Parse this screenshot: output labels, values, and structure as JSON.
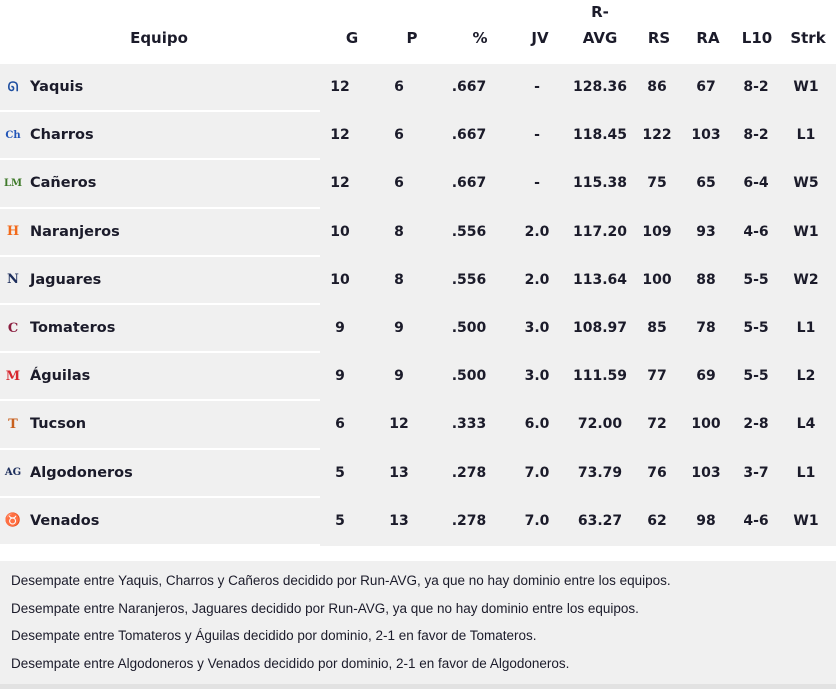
{
  "headers": [
    "Equipo",
    "G",
    "P",
    "%",
    "JV",
    "R-\nAVG",
    "RS",
    "RA",
    "L10",
    "Strk"
  ],
  "header_avg_top": "R-",
  "header_avg_bottom": "AVG",
  "teams": [
    {
      "name": "Yaquis",
      "icon": "yaquis-logo-icon",
      "icon_glyph": "ᘏ",
      "color": "#1f4fa0",
      "g": "12",
      "p": "6",
      "pct": ".667",
      "jv": "-",
      "ravg": "128.36",
      "rs": "86",
      "ra": "67",
      "l10": "8-2",
      "strk": "W1"
    },
    {
      "name": "Charros",
      "icon": "charros-logo-icon",
      "icon_glyph": "Ch",
      "color": "#2356b8",
      "g": "12",
      "p": "6",
      "pct": ".667",
      "jv": "-",
      "ravg": "118.45",
      "rs": "122",
      "ra": "103",
      "l10": "8-2",
      "strk": "L1"
    },
    {
      "name": "Cañeros",
      "icon": "caneros-logo-icon",
      "icon_glyph": "LM",
      "color": "#3f7a2a",
      "g": "12",
      "p": "6",
      "pct": ".667",
      "jv": "-",
      "ravg": "115.38",
      "rs": "75",
      "ra": "65",
      "l10": "6-4",
      "strk": "W5"
    },
    {
      "name": "Naranjeros",
      "icon": "naranjeros-logo-icon",
      "icon_glyph": "H",
      "color": "#f26a1b",
      "g": "10",
      "p": "8",
      "pct": ".556",
      "jv": "2.0",
      "ravg": "117.20",
      "rs": "109",
      "ra": "93",
      "l10": "4-6",
      "strk": "W1"
    },
    {
      "name": "Jaguares",
      "icon": "jaguares-logo-icon",
      "icon_glyph": "N",
      "color": "#1d2e5c",
      "g": "10",
      "p": "8",
      "pct": ".556",
      "jv": "2.0",
      "ravg": "113.64",
      "rs": "100",
      "ra": "88",
      "l10": "5-5",
      "strk": "W2"
    },
    {
      "name": "Tomateros",
      "icon": "tomateros-logo-icon",
      "icon_glyph": "C",
      "color": "#8b1e3f",
      "g": "9",
      "p": "9",
      "pct": ".500",
      "jv": "3.0",
      "ravg": "108.97",
      "rs": "85",
      "ra": "78",
      "l10": "5-5",
      "strk": "L1"
    },
    {
      "name": "Águilas",
      "icon": "aguilas-logo-icon",
      "icon_glyph": "M",
      "color": "#d7262e",
      "g": "9",
      "p": "9",
      "pct": ".500",
      "jv": "3.0",
      "ravg": "111.59",
      "rs": "77",
      "ra": "69",
      "l10": "5-5",
      "strk": "L2"
    },
    {
      "name": "Tucson",
      "icon": "tucson-logo-icon",
      "icon_glyph": "T",
      "color": "#c8601e",
      "g": "6",
      "p": "12",
      "pct": ".333",
      "jv": "6.0",
      "ravg": "72.00",
      "rs": "72",
      "ra": "100",
      "l10": "2-8",
      "strk": "L4"
    },
    {
      "name": "Algodoneros",
      "icon": "algodoneros-logo-icon",
      "icon_glyph": "AG",
      "color": "#1d2e5c",
      "g": "5",
      "p": "13",
      "pct": ".278",
      "jv": "7.0",
      "ravg": "73.79",
      "rs": "76",
      "ra": "103",
      "l10": "3-7",
      "strk": "L1"
    },
    {
      "name": "Venados",
      "icon": "venados-logo-icon",
      "icon_glyph": "♉",
      "color": "#d7262e",
      "g": "5",
      "p": "13",
      "pct": ".278",
      "jv": "7.0",
      "ravg": "63.27",
      "rs": "62",
      "ra": "98",
      "l10": "4-6",
      "strk": "W1"
    }
  ],
  "notes": [
    "Desempate entre Yaquis, Charros y Cañeros decidido por Run-AVG, ya que no hay dominio entre los equipos.",
    "Desempate entre Naranjeros, Jaguares decidido por Run-AVG, ya que no hay dominio entre los equipos.",
    "Desempate entre Tomateros y Águilas decidido por dominio, 2-1 en favor de Tomateros.",
    "Desempate entre Algodoneros y Venados decidido por dominio, 2-1 en favor de Algodoneros."
  ]
}
